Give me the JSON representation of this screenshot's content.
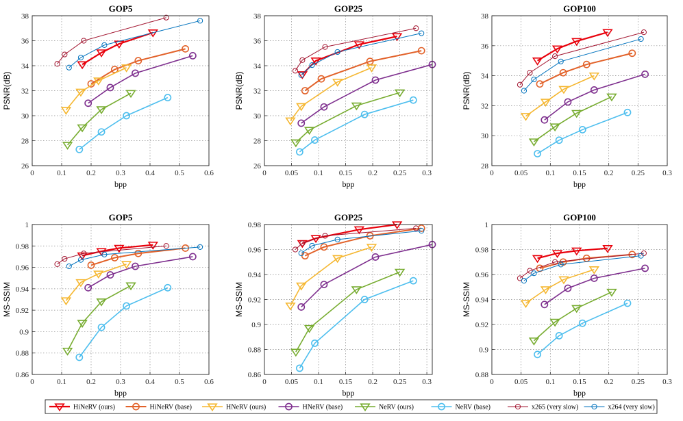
{
  "series_styles": [
    {
      "name": "HiNeRV (ours)",
      "color": "#e8000b",
      "marker": "tri-down",
      "width": 2.2
    },
    {
      "name": "HiNeRV (base)",
      "color": "#e2622a",
      "marker": "circle",
      "width": 2.0
    },
    {
      "name": "HNeRV (ours)",
      "color": "#f5b731",
      "marker": "tri-down",
      "width": 1.6
    },
    {
      "name": "HNeRV (base)",
      "color": "#7e2f8e",
      "marker": "circle",
      "width": 1.6
    },
    {
      "name": "NeRV (ours)",
      "color": "#77ac30",
      "marker": "tri-down",
      "width": 1.6
    },
    {
      "name": "NeRV (base)",
      "color": "#4dbeee",
      "marker": "circle",
      "width": 1.6
    },
    {
      "name": "x265 (very slow)",
      "color": "#a2142f",
      "marker": "circle-small",
      "width": 1.0
    },
    {
      "name": "x264 (very slow)",
      "color": "#0072bd",
      "marker": "circle-small",
      "width": 1.0
    }
  ],
  "chart_data": [
    {
      "type": "line",
      "title": "GOP5",
      "xlabel": "bpp",
      "ylabel": "PSNR(dB)",
      "xlim": [
        0,
        0.6
      ],
      "ylim": [
        26,
        38
      ],
      "grid": true,
      "xticks": [
        "0",
        "0.1",
        "0.2",
        "0.3",
        "0.4",
        "0.5",
        "0.6"
      ],
      "yticks": [
        "26",
        "28",
        "30",
        "32",
        "34",
        "36",
        "38"
      ],
      "series": [
        {
          "name": "HiNeRV (ours)",
          "x": [
            0.17,
            0.235,
            0.295,
            0.41
          ],
          "y": [
            34.1,
            35.05,
            35.75,
            36.65
          ]
        },
        {
          "name": "HiNeRV (base)",
          "x": [
            0.2,
            0.28,
            0.36,
            0.52
          ],
          "y": [
            32.55,
            33.7,
            34.4,
            35.35
          ]
        },
        {
          "name": "HNeRV (ours)",
          "x": [
            0.115,
            0.165,
            0.225,
            0.32
          ],
          "y": [
            30.45,
            31.9,
            32.8,
            33.85
          ]
        },
        {
          "name": "HNeRV (base)",
          "x": [
            0.19,
            0.265,
            0.35,
            0.545
          ],
          "y": [
            31.0,
            32.25,
            33.4,
            34.8
          ]
        },
        {
          "name": "NeRV (ours)",
          "x": [
            0.12,
            0.17,
            0.235,
            0.335
          ],
          "y": [
            27.65,
            29.05,
            30.5,
            31.8
          ]
        },
        {
          "name": "NeRV (base)",
          "x": [
            0.16,
            0.235,
            0.32,
            0.46
          ],
          "y": [
            27.3,
            28.7,
            30.0,
            31.45
          ]
        },
        {
          "name": "x265 (very slow)",
          "x": [
            0.085,
            0.11,
            0.175,
            0.455
          ],
          "y": [
            34.15,
            34.9,
            36.0,
            37.85
          ]
        },
        {
          "name": "x264 (very slow)",
          "x": [
            0.125,
            0.165,
            0.245,
            0.57
          ],
          "y": [
            33.85,
            34.65,
            35.65,
            37.6
          ]
        }
      ]
    },
    {
      "type": "line",
      "title": "GOP25",
      "xlabel": "bpp",
      "ylabel": "PSNR(dB)",
      "xlim": [
        0,
        0.31
      ],
      "ylim": [
        26,
        38
      ],
      "grid": true,
      "xticks": [
        "0",
        "0.05",
        "0.1",
        "0.15",
        "0.2",
        "0.25",
        "0.3"
      ],
      "yticks": [
        "26",
        "28",
        "30",
        "32",
        "34",
        "36",
        "38"
      ],
      "series": [
        {
          "name": "HiNeRV (ours)",
          "x": [
            0.07,
            0.095,
            0.175,
            0.245
          ],
          "y": [
            33.3,
            34.4,
            35.7,
            36.35
          ]
        },
        {
          "name": "HiNeRV (base)",
          "x": [
            0.075,
            0.105,
            0.195,
            0.29
          ],
          "y": [
            32.0,
            32.95,
            34.35,
            35.2
          ]
        },
        {
          "name": "HNeRV (ours)",
          "x": [
            0.048,
            0.068,
            0.135,
            0.198
          ],
          "y": [
            29.6,
            30.75,
            32.7,
            33.85
          ]
        },
        {
          "name": "HNeRV (base)",
          "x": [
            0.068,
            0.11,
            0.205,
            0.31
          ],
          "y": [
            29.4,
            30.7,
            32.85,
            34.1
          ]
        },
        {
          "name": "NeRV (ours)",
          "x": [
            0.058,
            0.083,
            0.17,
            0.25
          ],
          "y": [
            27.85,
            28.85,
            30.8,
            31.85
          ]
        },
        {
          "name": "NeRV (base)",
          "x": [
            0.065,
            0.093,
            0.185,
            0.275
          ],
          "y": [
            27.1,
            28.05,
            30.1,
            31.25
          ]
        },
        {
          "name": "x265 (very slow)",
          "x": [
            0.057,
            0.07,
            0.112,
            0.28
          ],
          "y": [
            33.6,
            34.45,
            35.5,
            37.0
          ]
        },
        {
          "name": "x264 (very slow)",
          "x": [
            0.068,
            0.088,
            0.135,
            0.29
          ],
          "y": [
            33.25,
            34.05,
            35.1,
            36.6
          ]
        }
      ]
    },
    {
      "type": "line",
      "title": "GOP100",
      "xlabel": "bpp",
      "ylabel": "PSNR(dB)",
      "xlim": [
        0,
        0.3
      ],
      "ylim": [
        28,
        38
      ],
      "grid": true,
      "xticks": [
        "0",
        "0.05",
        "0.1",
        "0.15",
        "0.2",
        "0.25",
        "0.3"
      ],
      "yticks": [
        "28",
        "30",
        "32",
        "34",
        "36",
        "38"
      ],
      "series": [
        {
          "name": "HiNeRV (ours)",
          "x": [
            0.078,
            0.112,
            0.145,
            0.198
          ],
          "y": [
            35.0,
            35.8,
            36.3,
            36.9
          ]
        },
        {
          "name": "HiNeRV (base)",
          "x": [
            0.082,
            0.122,
            0.162,
            0.24
          ],
          "y": [
            33.45,
            34.2,
            34.75,
            35.5
          ]
        },
        {
          "name": "HNeRV (ours)",
          "x": [
            0.058,
            0.092,
            0.123,
            0.175
          ],
          "y": [
            31.3,
            32.25,
            33.1,
            34.0
          ]
        },
        {
          "name": "HNeRV (base)",
          "x": [
            0.09,
            0.13,
            0.175,
            0.262
          ],
          "y": [
            31.05,
            32.25,
            33.05,
            34.1
          ]
        },
        {
          "name": "NeRV (ours)",
          "x": [
            0.072,
            0.108,
            0.145,
            0.205
          ],
          "y": [
            29.6,
            30.6,
            31.5,
            32.6
          ]
        },
        {
          "name": "NeRV (base)",
          "x": [
            0.078,
            0.115,
            0.155,
            0.232
          ],
          "y": [
            28.8,
            29.7,
            30.4,
            31.55
          ]
        },
        {
          "name": "x265 (very slow)",
          "x": [
            0.048,
            0.065,
            0.108,
            0.26
          ],
          "y": [
            33.4,
            34.2,
            35.3,
            36.9
          ]
        },
        {
          "name": "x264 (very slow)",
          "x": [
            0.055,
            0.072,
            0.118,
            0.255
          ],
          "y": [
            33.0,
            33.75,
            34.95,
            36.45
          ]
        }
      ]
    },
    {
      "type": "line",
      "title": "GOP5",
      "xlabel": "bpp",
      "ylabel": "MS-SSIM",
      "xlim": [
        0,
        0.6
      ],
      "ylim": [
        0.86,
        1.0
      ],
      "grid": true,
      "xticks": [
        "0",
        "0.1",
        "0.2",
        "0.3",
        "0.4",
        "0.5",
        "0.6"
      ],
      "yticks": [
        "0.86",
        "0.88",
        "0.9",
        "0.92",
        "0.94",
        "0.96",
        "0.98",
        "1"
      ],
      "series": [
        {
          "name": "HiNeRV (ours)",
          "x": [
            0.17,
            0.235,
            0.295,
            0.41
          ],
          "y": [
            0.971,
            0.975,
            0.978,
            0.981
          ]
        },
        {
          "name": "HiNeRV (base)",
          "x": [
            0.2,
            0.28,
            0.36,
            0.52
          ],
          "y": [
            0.962,
            0.969,
            0.973,
            0.978
          ]
        },
        {
          "name": "HNeRV (ours)",
          "x": [
            0.115,
            0.165,
            0.225,
            0.32
          ],
          "y": [
            0.929,
            0.946,
            0.954,
            0.963
          ]
        },
        {
          "name": "HNeRV (base)",
          "x": [
            0.19,
            0.265,
            0.35,
            0.545
          ],
          "y": [
            0.941,
            0.953,
            0.961,
            0.97
          ]
        },
        {
          "name": "NeRV (ours)",
          "x": [
            0.12,
            0.17,
            0.235,
            0.335
          ],
          "y": [
            0.882,
            0.908,
            0.928,
            0.943
          ]
        },
        {
          "name": "NeRV (base)",
          "x": [
            0.16,
            0.235,
            0.32,
            0.46
          ],
          "y": [
            0.876,
            0.904,
            0.924,
            0.941
          ]
        },
        {
          "name": "x265 (very slow)",
          "x": [
            0.085,
            0.11,
            0.175,
            0.455
          ],
          "y": [
            0.963,
            0.968,
            0.973,
            0.98
          ]
        },
        {
          "name": "x264 (very slow)",
          "x": [
            0.125,
            0.165,
            0.245,
            0.57
          ],
          "y": [
            0.961,
            0.967,
            0.972,
            0.979
          ]
        }
      ]
    },
    {
      "type": "line",
      "title": "GOP25",
      "xlabel": "bpp",
      "ylabel": "MS-SSIM",
      "xlim": [
        0,
        0.31
      ],
      "ylim": [
        0.86,
        0.98
      ],
      "grid": true,
      "xticks": [
        "0",
        "0.05",
        "0.1",
        "0.15",
        "0.2",
        "0.25",
        "0.3"
      ],
      "yticks": [
        "0.86",
        "0.88",
        "0.9",
        "0.92",
        "0.94",
        "0.96",
        "0.98"
      ],
      "series": [
        {
          "name": "HiNeRV (ours)",
          "x": [
            0.07,
            0.095,
            0.175,
            0.245
          ],
          "y": [
            0.965,
            0.969,
            0.976,
            0.98
          ]
        },
        {
          "name": "HiNeRV (base)",
          "x": [
            0.075,
            0.11,
            0.195,
            0.29
          ],
          "y": [
            0.955,
            0.962,
            0.971,
            0.977
          ]
        },
        {
          "name": "HNeRV (ours)",
          "x": [
            0.048,
            0.068,
            0.135,
            0.198
          ],
          "y": [
            0.915,
            0.931,
            0.953,
            0.962
          ]
        },
        {
          "name": "HNeRV (base)",
          "x": [
            0.068,
            0.11,
            0.205,
            0.31
          ],
          "y": [
            0.914,
            0.932,
            0.954,
            0.964
          ]
        },
        {
          "name": "NeRV (ours)",
          "x": [
            0.058,
            0.083,
            0.17,
            0.25
          ],
          "y": [
            0.878,
            0.897,
            0.928,
            0.942
          ]
        },
        {
          "name": "NeRV (base)",
          "x": [
            0.065,
            0.093,
            0.185,
            0.275
          ],
          "y": [
            0.865,
            0.885,
            0.92,
            0.935
          ]
        },
        {
          "name": "x265 (very slow)",
          "x": [
            0.057,
            0.07,
            0.112,
            0.28
          ],
          "y": [
            0.96,
            0.965,
            0.971,
            0.977
          ]
        },
        {
          "name": "x264 (very slow)",
          "x": [
            0.068,
            0.088,
            0.135,
            0.29
          ],
          "y": [
            0.957,
            0.963,
            0.968,
            0.975
          ]
        }
      ]
    },
    {
      "type": "line",
      "title": "GOP100",
      "xlabel": "bpp",
      "ylabel": "MS-SSIM",
      "xlim": [
        0,
        0.3
      ],
      "ylim": [
        0.88,
        1.0
      ],
      "grid": true,
      "xticks": [
        "0",
        "0.05",
        "0.1",
        "0.15",
        "0.2",
        "0.25",
        "0.3"
      ],
      "yticks": [
        "0.88",
        "0.9",
        "0.92",
        "0.94",
        "0.96",
        "0.98",
        "1"
      ],
      "series": [
        {
          "name": "HiNeRV (ours)",
          "x": [
            0.078,
            0.112,
            0.145,
            0.198
          ],
          "y": [
            0.973,
            0.977,
            0.979,
            0.981
          ]
        },
        {
          "name": "HiNeRV (base)",
          "x": [
            0.082,
            0.122,
            0.162,
            0.24
          ],
          "y": [
            0.965,
            0.97,
            0.973,
            0.976
          ]
        },
        {
          "name": "HNeRV (ours)",
          "x": [
            0.058,
            0.092,
            0.123,
            0.175
          ],
          "y": [
            0.937,
            0.948,
            0.956,
            0.964
          ]
        },
        {
          "name": "HNeRV (base)",
          "x": [
            0.09,
            0.13,
            0.175,
            0.262
          ],
          "y": [
            0.936,
            0.949,
            0.957,
            0.965
          ]
        },
        {
          "name": "NeRV (ours)",
          "x": [
            0.072,
            0.108,
            0.145,
            0.205
          ],
          "y": [
            0.907,
            0.922,
            0.933,
            0.946
          ]
        },
        {
          "name": "NeRV (base)",
          "x": [
            0.078,
            0.115,
            0.155,
            0.232
          ],
          "y": [
            0.896,
            0.911,
            0.921,
            0.937
          ]
        },
        {
          "name": "x265 (very slow)",
          "x": [
            0.048,
            0.065,
            0.108,
            0.26
          ],
          "y": [
            0.957,
            0.963,
            0.97,
            0.977
          ]
        },
        {
          "name": "x264 (very slow)",
          "x": [
            0.055,
            0.072,
            0.118,
            0.255
          ],
          "y": [
            0.955,
            0.961,
            0.968,
            0.975
          ]
        }
      ]
    }
  ],
  "legend": {
    "location": "bottom"
  }
}
